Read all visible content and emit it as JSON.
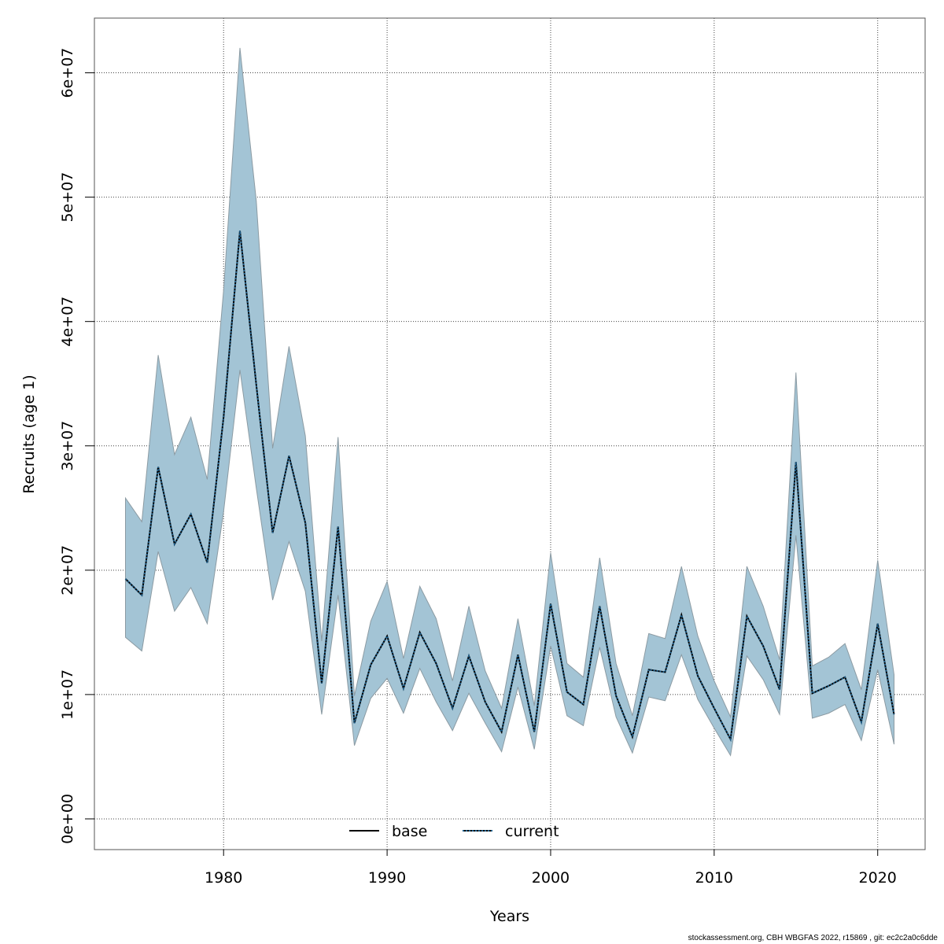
{
  "chart_data": {
    "type": "line",
    "xlabel": "Years",
    "ylabel": "Recruits (age 1)",
    "xlim": [
      1972.1,
      2022.9
    ],
    "ylim": [
      -2470000,
      64400000
    ],
    "grid": true,
    "x_ticks": [
      1980,
      1990,
      2000,
      2010,
      2020
    ],
    "x_tick_labels": [
      "1980",
      "1990",
      "2000",
      "2010",
      "2020"
    ],
    "y_ticks": [
      0,
      10000000,
      20000000,
      30000000,
      40000000,
      50000000,
      60000000
    ],
    "y_tick_labels": [
      "0e+00",
      "1e+07",
      "2e+07",
      "3e+07",
      "4e+07",
      "5e+07",
      "6e+07"
    ],
    "legend_placement": "bottom",
    "legend": [
      {
        "name": "base",
        "style": "solid",
        "color": "#000000"
      },
      {
        "name": "current",
        "style": "dotted",
        "color": "#000000",
        "dot_color": "#1f5f8b"
      }
    ],
    "band_color": "#a3c4d5",
    "band_edge_color": "#8c9ba3",
    "x": [
      1974,
      1975,
      1976,
      1977,
      1978,
      1979,
      1980,
      1981,
      1982,
      1983,
      1984,
      1985,
      1986,
      1987,
      1988,
      1989,
      1990,
      1991,
      1992,
      1993,
      1994,
      1995,
      1996,
      1997,
      1998,
      1999,
      2000,
      2001,
      2002,
      2003,
      2004,
      2005,
      2006,
      2007,
      2008,
      2009,
      2010,
      2011,
      2012,
      2013,
      2014,
      2015,
      2016,
      2017,
      2018,
      2019,
      2020,
      2021
    ],
    "series": [
      {
        "name": "base",
        "values": [
          19300000.0,
          18000000.0,
          28300000.0,
          22100000.0,
          24500000.0,
          20600000.0,
          32300000.0,
          47300000.0,
          34900000.0,
          23000000.0,
          29200000.0,
          23800000.0,
          10900000.0,
          23500000.0,
          7700000.0,
          12400000.0,
          14700000.0,
          10500000.0,
          15000000.0,
          12500000.0,
          8900000.0,
          13100000.0,
          9400000.0,
          7000000.0,
          13200000.0,
          7000000.0,
          17300000.0,
          10200000.0,
          9200000.0,
          17100000.0,
          9900000.0,
          6600000.0,
          12000000.0,
          11800000.0,
          16400000.0,
          11500000.0,
          8900000.0,
          6400000.0,
          16300000.0,
          13900000.0,
          10400000.0,
          28700000.0,
          10100000.0,
          10700000.0,
          11400000.0,
          7800000.0,
          15700000.0,
          8400000.0
        ]
      },
      {
        "name": "current",
        "values": [
          19300000.0,
          18000000.0,
          28300000.0,
          22100000.0,
          24500000.0,
          20600000.0,
          32300000.0,
          47300000.0,
          34900000.0,
          23000000.0,
          29200000.0,
          23800000.0,
          10900000.0,
          23500000.0,
          7700000.0,
          12400000.0,
          14700000.0,
          10500000.0,
          15000000.0,
          12500000.0,
          8900000.0,
          13100000.0,
          9400000.0,
          7000000.0,
          13200000.0,
          7000000.0,
          17300000.0,
          10200000.0,
          9200000.0,
          17100000.0,
          9900000.0,
          6600000.0,
          12000000.0,
          11800000.0,
          16400000.0,
          11500000.0,
          8900000.0,
          6400000.0,
          16300000.0,
          13900000.0,
          10400000.0,
          28700000.0,
          10100000.0,
          10700000.0,
          11400000.0,
          7800000.0,
          15700000.0,
          8400000.0
        ]
      }
    ],
    "upper": [
      25800000.0,
      23900000.0,
      37300000.0,
      29300000.0,
      32300000.0,
      27300000.0,
      42500000.0,
      62000000.0,
      49700000.0,
      29800000.0,
      38000000.0,
      30800000.0,
      14300000.0,
      30700000.0,
      9900000.0,
      15900000.0,
      19100000.0,
      12900000.0,
      18700000.0,
      16100000.0,
      11100000.0,
      17100000.0,
      11900000.0,
      8900000.0,
      16100000.0,
      9100000.0,
      21400000.0,
      12500000.0,
      11400000.0,
      21000000.0,
      12500000.0,
      8300000.0,
      14900000.0,
      14500000.0,
      20300000.0,
      14700000.0,
      11100000.0,
      8200000.0,
      20300000.0,
      17100000.0,
      12800000.0,
      35900000.0,
      12300000.0,
      13000000.0,
      14100000.0,
      10400000.0,
      20800000.0,
      11600000.0
    ],
    "lower": [
      14600000.0,
      13500000.0,
      21500000.0,
      16700000.0,
      18600000.0,
      15700000.0,
      24700000.0,
      36100000.0,
      26600000.0,
      17600000.0,
      22300000.0,
      18300000.0,
      8400000.0,
      18000000.0,
      5900000.0,
      9700000.0,
      11300000.0,
      8500000.0,
      12100000.0,
      9400000.0,
      7100000.0,
      10100000.0,
      7700000.0,
      5400000.0,
      10600000.0,
      5600000.0,
      13900000.0,
      8300000.0,
      7500000.0,
      13800000.0,
      8200000.0,
      5300000.0,
      9800000.0,
      9500000.0,
      13200000.0,
      9600000.0,
      7300000.0,
      5100000.0,
      13100000.0,
      11200000.0,
      8400000.0,
      22800000.0,
      8100000.0,
      8500000.0,
      9200000.0,
      6300000.0,
      12000000.0,
      6000000.0
    ]
  },
  "footer": "stockassessment.org, CBH  WBGFAS  2022, r15869 , git: ec2c2a0c6dde"
}
